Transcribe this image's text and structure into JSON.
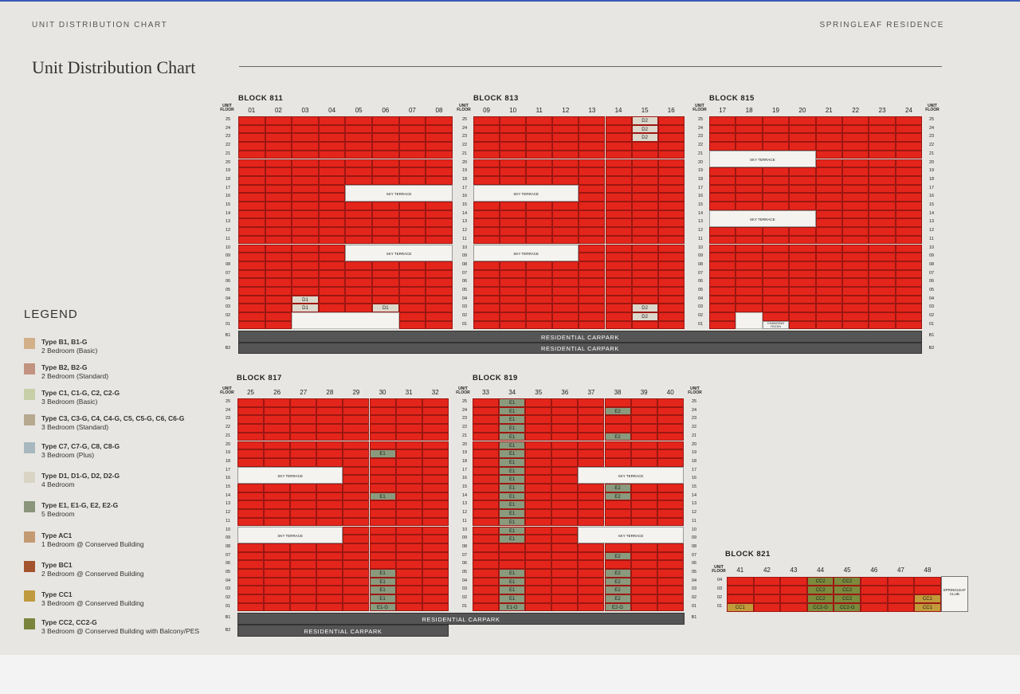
{
  "header": {
    "left": "UNIT DISTRIBUTION CHART",
    "right": "SPRINGLEAF RESIDENCE",
    "title": "Unit Distribution Chart"
  },
  "legend": {
    "title": "LEGEND",
    "items": [
      {
        "color": "#d1b08a",
        "type": "Type B1, B1-G",
        "desc": "2 Bedroom (Basic)"
      },
      {
        "color": "#c29380",
        "type": "Type B2, B2-G",
        "desc": "2 Bedroom (Standard)"
      },
      {
        "color": "#c6cfa7",
        "type": "Type C1, C1-G, C2, C2-G",
        "desc": "3 Bedroom (Basic)"
      },
      {
        "color": "#b7a890",
        "type": "Type C3, C3-G, C4, C4-G, C5, C5-G, C6, C6-G",
        "desc": "3 Bedroom (Standard)"
      },
      {
        "color": "#a8b8c0",
        "type": "Type C7, C7-G, C8, C8-G",
        "desc": "3 Bedroom (Plus)"
      },
      {
        "color": "#d9d4c4",
        "type": "Type D1, D1-G, D2, D2-G",
        "desc": "4 Bedroom"
      },
      {
        "color": "#8a957c",
        "type": "Type E1, E1-G, E2, E2-G",
        "desc": "5 Bedroom"
      },
      {
        "color": "#c49a73",
        "type": "Type AC1",
        "desc": "1 Bedroom @ Conserved Building"
      },
      {
        "color": "#a4532f",
        "type": "Type BC1",
        "desc": "2 Bedroom @ Conserved Building"
      },
      {
        "color": "#bf9a3e",
        "type": "Type CC1",
        "desc": "3 Bedroom @ Conserved Building"
      },
      {
        "color": "#7a843c",
        "type": "Type CC2, CC2-G",
        "desc": "3 Bedroom @ Conserved Building with Balcony/PES"
      }
    ]
  },
  "labels": {
    "unit": "UNIT",
    "floor": "FLOOR",
    "sky_terrace": "SKY TERRACE",
    "carpark": "RESIDENTIAL CARPARK",
    "changing": "CHANGING ROOM",
    "club": "SPRINGLEAF CLUB"
  },
  "blocks": {
    "b811": {
      "title": "BLOCK 811",
      "units": [
        "01",
        "02",
        "03",
        "04",
        "05",
        "06",
        "07",
        "08"
      ]
    },
    "b813": {
      "title": "BLOCK 813",
      "units": [
        "09",
        "10",
        "11",
        "12",
        "13",
        "14",
        "15",
        "16"
      ]
    },
    "b815": {
      "title": "BLOCK 815",
      "units": [
        "17",
        "18",
        "19",
        "20",
        "21",
        "22",
        "23",
        "24"
      ]
    },
    "b817": {
      "title": "BLOCK 817",
      "units": [
        "25",
        "26",
        "27",
        "28",
        "29",
        "30",
        "31",
        "32"
      ]
    },
    "b819": {
      "title": "BLOCK 819",
      "units": [
        "33",
        "34",
        "35",
        "36",
        "37",
        "38",
        "39",
        "40"
      ]
    },
    "b821": {
      "title": "BLOCK 821",
      "units": [
        "41",
        "42",
        "43",
        "44",
        "45",
        "46",
        "47",
        "48"
      ]
    }
  },
  "floors_top": [
    "25",
    "24",
    "23",
    "22",
    "21",
    "20",
    "19",
    "18",
    "17",
    "16",
    "15",
    "14",
    "13",
    "12",
    "11",
    "10",
    "09",
    "08",
    "07",
    "06",
    "05",
    "04",
    "03",
    "02",
    "01"
  ],
  "basement": [
    "B1",
    "B2"
  ],
  "floors_821": [
    "04",
    "03",
    "02",
    "01"
  ],
  "highlight": {
    "d1": "D1",
    "d2": "D2",
    "e1": "E1",
    "e1g": "E1-G",
    "e2": "E2",
    "e2g": "E2-G",
    "cc1": "CC1",
    "cc2": "CC2",
    "cc2g": "CC2-G"
  }
}
